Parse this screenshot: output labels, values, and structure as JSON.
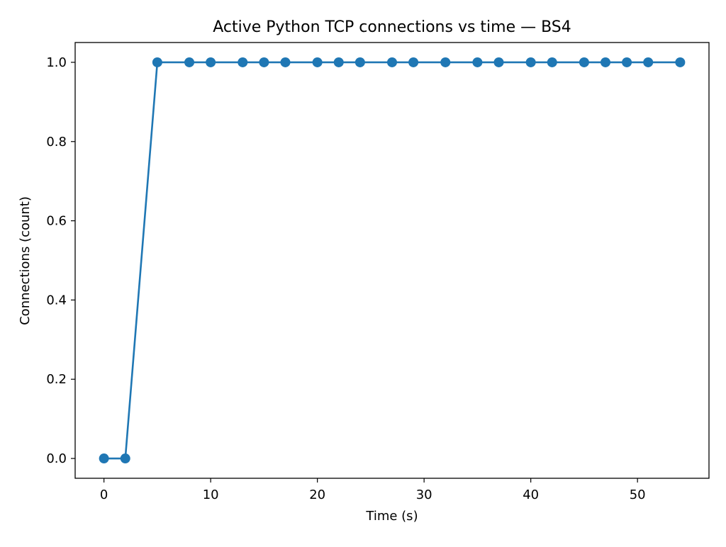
{
  "chart_data": {
    "type": "line",
    "title": "Active Python TCP connections vs time — BS4",
    "xlabel": "Time (s)",
    "ylabel": "Connections (count)",
    "xlim": [
      -2.7,
      56.7
    ],
    "ylim": [
      -0.05,
      1.05
    ],
    "xticks": [
      0,
      10,
      20,
      30,
      40,
      50
    ],
    "yticks": [
      0.0,
      0.2,
      0.4,
      0.6,
      0.8,
      1.0
    ],
    "xtick_labels": [
      "0",
      "10",
      "20",
      "30",
      "40",
      "50"
    ],
    "ytick_labels": [
      "0.0",
      "0.2",
      "0.4",
      "0.6",
      "0.8",
      "1.0"
    ],
    "grid": false,
    "series": [
      {
        "color": "#1f77b4",
        "marker": "circle",
        "x": [
          0,
          2,
          5,
          8,
          10,
          13,
          15,
          17,
          20,
          22,
          24,
          27,
          29,
          32,
          35,
          37,
          40,
          42,
          45,
          47,
          49,
          51,
          54
        ],
        "y": [
          0,
          0,
          1,
          1,
          1,
          1,
          1,
          1,
          1,
          1,
          1,
          1,
          1,
          1,
          1,
          1,
          1,
          1,
          1,
          1,
          1,
          1,
          1
        ]
      }
    ]
  }
}
